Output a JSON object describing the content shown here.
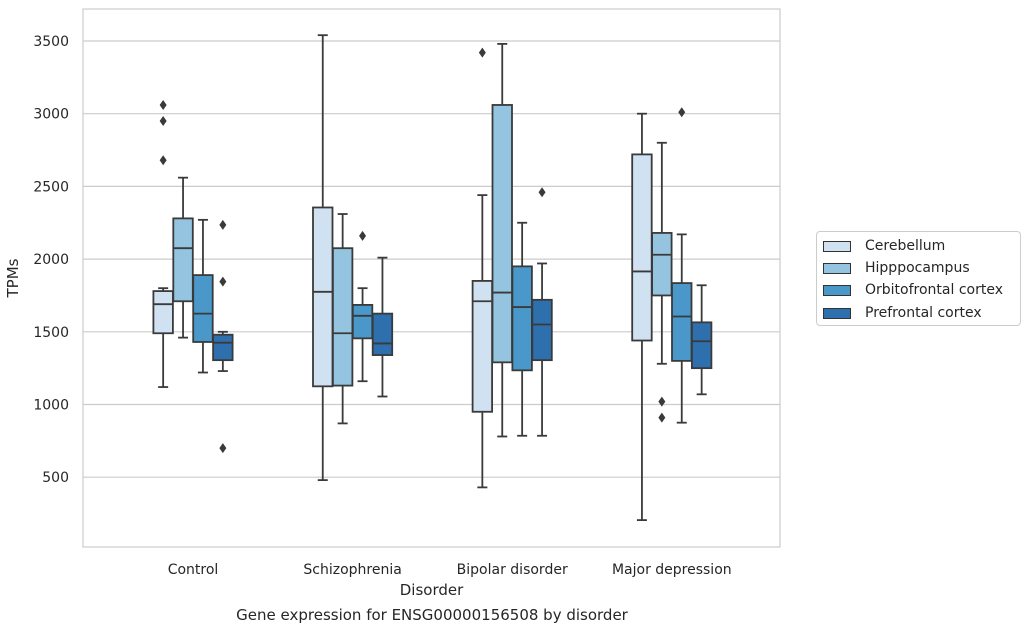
{
  "chart_data": {
    "type": "box",
    "title": "Gene expression for ENSG00000156508 by disorder",
    "xlabel": "Disorder",
    "ylabel": "TPMs",
    "ylim": [
      20,
      3720
    ],
    "yticks": [
      500,
      1000,
      1500,
      2000,
      2500,
      3000,
      3500
    ],
    "grid": "horizontal",
    "legend_position": "right",
    "categories": [
      "Control",
      "Schizophrenia",
      "Bipolar disorder",
      "Major depression"
    ],
    "series": [
      {
        "name": "Cerebellum",
        "color": "#d0e1f2",
        "boxes": [
          {
            "whislo": 1120,
            "q1": 1490,
            "med": 1690,
            "q3": 1780,
            "whishi": 1800,
            "fliers": [
              2680,
              2950,
              3060
            ]
          },
          {
            "whislo": 480,
            "q1": 1125,
            "med": 1775,
            "q3": 2355,
            "whishi": 3540,
            "fliers": []
          },
          {
            "whislo": 430,
            "q1": 950,
            "med": 1710,
            "q3": 1850,
            "whishi": 2440,
            "fliers": [
              3420
            ]
          },
          {
            "whislo": 205,
            "q1": 1440,
            "med": 1915,
            "q3": 2720,
            "whishi": 3000,
            "fliers": []
          }
        ]
      },
      {
        "name": "Hipppocampus",
        "color": "#94c4df",
        "boxes": [
          {
            "whislo": 1460,
            "q1": 1710,
            "med": 2075,
            "q3": 2280,
            "whishi": 2560,
            "fliers": []
          },
          {
            "whislo": 870,
            "q1": 1130,
            "med": 1490,
            "q3": 2075,
            "whishi": 2310,
            "fliers": []
          },
          {
            "whislo": 780,
            "q1": 1290,
            "med": 1770,
            "q3": 3060,
            "whishi": 3480,
            "fliers": []
          },
          {
            "whislo": 1280,
            "q1": 1750,
            "med": 2030,
            "q3": 2180,
            "whishi": 2800,
            "fliers": [
              910,
              1020
            ]
          }
        ]
      },
      {
        "name": "Orbitofrontal cortex",
        "color": "#4a98c9",
        "boxes": [
          {
            "whislo": 1220,
            "q1": 1430,
            "med": 1625,
            "q3": 1890,
            "whishi": 2270,
            "fliers": []
          },
          {
            "whislo": 1160,
            "q1": 1455,
            "med": 1610,
            "q3": 1685,
            "whishi": 1800,
            "fliers": [
              2160
            ]
          },
          {
            "whislo": 785,
            "q1": 1235,
            "med": 1670,
            "q3": 1950,
            "whishi": 2250,
            "fliers": []
          },
          {
            "whislo": 875,
            "q1": 1300,
            "med": 1605,
            "q3": 1835,
            "whishi": 2170,
            "fliers": [
              3010
            ]
          }
        ]
      },
      {
        "name": "Prefrontal cortex",
        "color": "#2e6fad",
        "boxes": [
          {
            "whislo": 1230,
            "q1": 1305,
            "med": 1425,
            "q3": 1480,
            "whishi": 1500,
            "fliers": [
              700,
              1845,
              2235
            ]
          },
          {
            "whislo": 1055,
            "q1": 1340,
            "med": 1420,
            "q3": 1625,
            "whishi": 2010,
            "fliers": []
          },
          {
            "whislo": 785,
            "q1": 1305,
            "med": 1550,
            "q3": 1720,
            "whishi": 1970,
            "fliers": [
              2460
            ]
          },
          {
            "whislo": 1070,
            "q1": 1250,
            "med": 1435,
            "q3": 1565,
            "whishi": 1820,
            "fliers": []
          }
        ]
      }
    ]
  }
}
